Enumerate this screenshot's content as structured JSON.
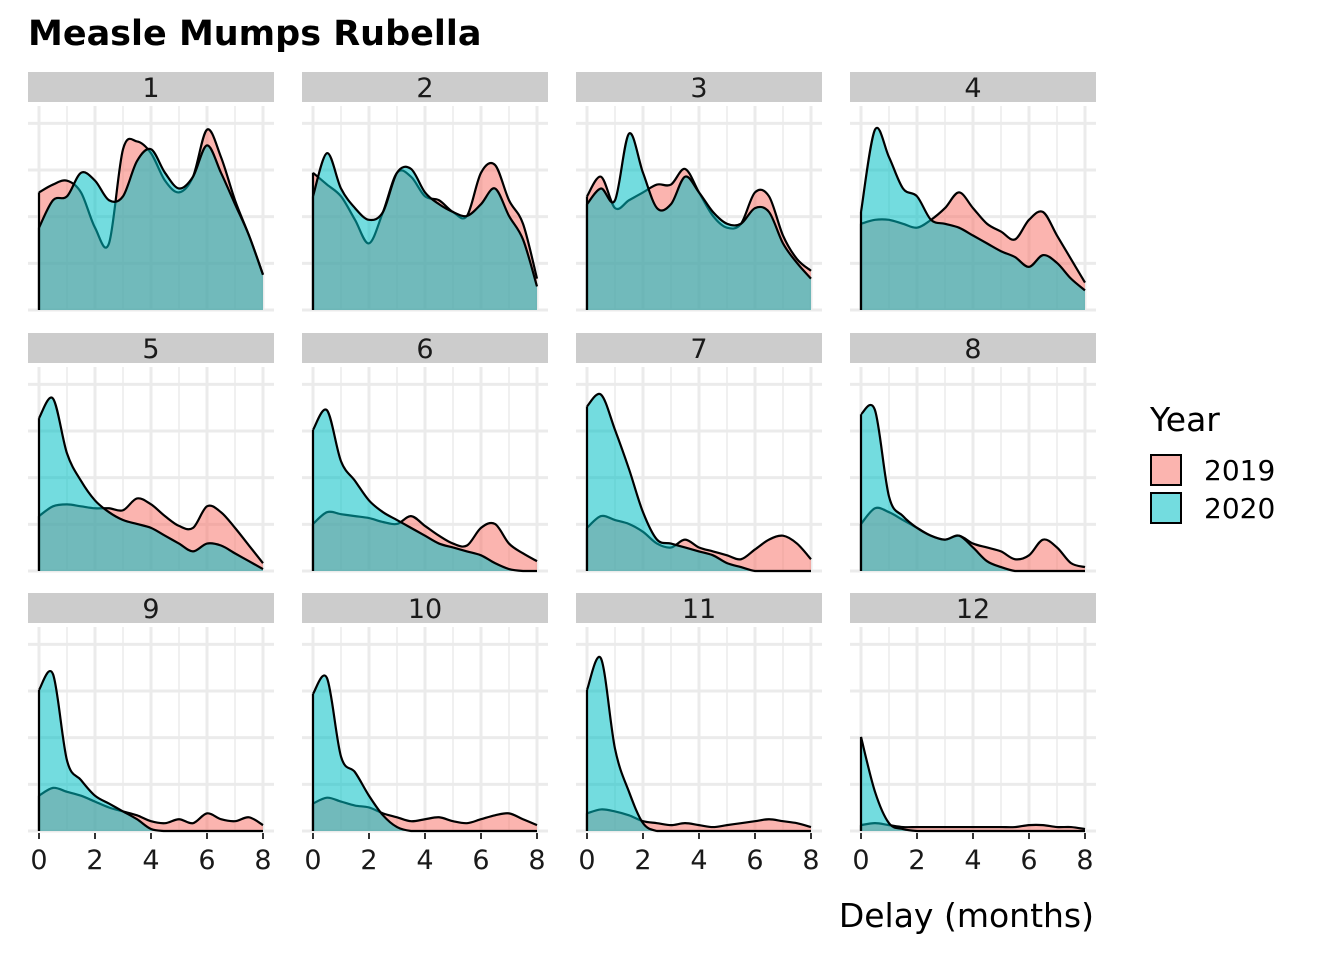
{
  "chart_data": {
    "type": "area",
    "title": "Measle Mumps Rubella",
    "xlabel": "Delay (months)",
    "ylabel": "",
    "xlim": [
      0,
      8
    ],
    "x_ticks": [
      0,
      2,
      4,
      6,
      8
    ],
    "grid": true,
    "legend": {
      "title": "Year",
      "placement": "right"
    },
    "series": [
      {
        "name": "2019",
        "color": "#F8766D"
      },
      {
        "name": "2020",
        "color": "#00BFC4"
      }
    ],
    "x": [
      0,
      0.5,
      1,
      1.5,
      2,
      2.5,
      3,
      3.5,
      4,
      4.5,
      5,
      5.5,
      6,
      6.5,
      7,
      7.5,
      8
    ],
    "panels": [
      {
        "label": "1",
        "y2019": [
          0.6,
          0.64,
          0.66,
          0.6,
          0.42,
          0.34,
          0.82,
          0.86,
          0.8,
          0.66,
          0.6,
          0.68,
          0.92,
          0.78,
          0.56,
          0.38,
          0.18
        ],
        "y2020": [
          0.42,
          0.56,
          0.58,
          0.7,
          0.66,
          0.56,
          0.58,
          0.76,
          0.82,
          0.7,
          0.62,
          0.68,
          0.84,
          0.7,
          0.54,
          0.38,
          0.18
        ]
      },
      {
        "label": "2",
        "y2019": [
          0.7,
          0.64,
          0.58,
          0.46,
          0.34,
          0.5,
          0.7,
          0.68,
          0.58,
          0.56,
          0.5,
          0.48,
          0.7,
          0.74,
          0.56,
          0.44,
          0.16
        ]
      },
      {
        "label": "3",
        "y2019": [
          0.58,
          0.68,
          0.52,
          0.56,
          0.6,
          0.64,
          0.64,
          0.72,
          0.6,
          0.48,
          0.42,
          0.44,
          0.6,
          0.58,
          0.38,
          0.26,
          0.2
        ]
      },
      {
        "label": "4",
        "y2019": [
          0.44,
          0.46,
          0.46,
          0.44,
          0.42,
          0.46,
          0.52,
          0.6,
          0.52,
          0.44,
          0.4,
          0.36,
          0.46,
          0.5,
          0.38,
          0.26,
          0.14
        ]
      },
      {
        "label": "5",
        "y2019": [
          0.28,
          0.33,
          0.34,
          0.33,
          0.32,
          0.32,
          0.31,
          0.37,
          0.34,
          0.28,
          0.23,
          0.22,
          0.33,
          0.3,
          0.22,
          0.13,
          0.04
        ]
      },
      {
        "label": "6",
        "y2019": [
          0.24,
          0.3,
          0.29,
          0.28,
          0.27,
          0.25,
          0.24,
          0.28,
          0.23,
          0.18,
          0.14,
          0.13,
          0.22,
          0.24,
          0.14,
          0.09,
          0.05
        ]
      },
      {
        "label": "7",
        "y2019": [
          0.22,
          0.28,
          0.26,
          0.24,
          0.2,
          0.14,
          0.12,
          0.16,
          0.12,
          0.1,
          0.08,
          0.06,
          0.11,
          0.16,
          0.18,
          0.14,
          0.06
        ]
      },
      {
        "label": "8",
        "y2019": [
          0.24,
          0.32,
          0.3,
          0.26,
          0.22,
          0.18,
          0.16,
          0.18,
          0.14,
          0.12,
          0.1,
          0.06,
          0.08,
          0.16,
          0.12,
          0.04,
          0.02
        ]
      },
      {
        "label": "9",
        "y2019": [
          0.18,
          0.22,
          0.2,
          0.18,
          0.15,
          0.12,
          0.1,
          0.08,
          0.05,
          0.04,
          0.06,
          0.04,
          0.09,
          0.06,
          0.05,
          0.07,
          0.03
        ]
      },
      {
        "label": "10",
        "y2019": [
          0.14,
          0.17,
          0.15,
          0.13,
          0.12,
          0.09,
          0.07,
          0.05,
          0.06,
          0.07,
          0.05,
          0.04,
          0.06,
          0.08,
          0.09,
          0.06,
          0.03
        ]
      },
      {
        "label": "11",
        "y2019": [
          0.09,
          0.11,
          0.1,
          0.08,
          0.05,
          0.04,
          0.03,
          0.04,
          0.03,
          0.02,
          0.03,
          0.04,
          0.05,
          0.06,
          0.05,
          0.04,
          0.02
        ]
      },
      {
        "label": "12",
        "y2019": [
          0.03,
          0.04,
          0.03,
          0.02,
          0.02,
          0.02,
          0.02,
          0.02,
          0.02,
          0.02,
          0.02,
          0.02,
          0.03,
          0.03,
          0.02,
          0.02,
          0.01
        ]
      }
    ],
    "panels_2020": {
      "2": [
        0.58,
        0.8,
        0.62,
        0.52,
        0.46,
        0.5,
        0.7,
        0.72,
        0.6,
        0.54,
        0.5,
        0.48,
        0.54,
        0.62,
        0.48,
        0.36,
        0.12
      ],
      "3": [
        0.54,
        0.62,
        0.56,
        0.9,
        0.7,
        0.52,
        0.54,
        0.68,
        0.6,
        0.5,
        0.44,
        0.44,
        0.52,
        0.5,
        0.34,
        0.24,
        0.16
      ],
      "4": [
        0.5,
        0.92,
        0.78,
        0.62,
        0.58,
        0.46,
        0.44,
        0.42,
        0.38,
        0.34,
        0.3,
        0.27,
        0.22,
        0.28,
        0.24,
        0.16,
        0.1
      ],
      "5": [
        0.78,
        0.88,
        0.6,
        0.46,
        0.36,
        0.3,
        0.26,
        0.24,
        0.22,
        0.18,
        0.14,
        0.1,
        0.14,
        0.13,
        0.09,
        0.05,
        0.01
      ],
      "6": [
        0.72,
        0.82,
        0.56,
        0.46,
        0.36,
        0.3,
        0.26,
        0.22,
        0.18,
        0.14,
        0.12,
        0.1,
        0.08,
        0.04,
        0.01,
        0.0,
        0.0
      ],
      "7": [
        0.84,
        0.9,
        0.72,
        0.52,
        0.3,
        0.16,
        0.14,
        0.12,
        0.1,
        0.08,
        0.04,
        0.02,
        0.0,
        0.0,
        0.0,
        0.0,
        0.0
      ],
      "8": [
        0.8,
        0.82,
        0.38,
        0.28,
        0.22,
        0.18,
        0.16,
        0.18,
        0.12,
        0.05,
        0.02,
        0.0,
        0.0,
        0.0,
        0.0,
        0.0,
        0.0
      ],
      "9": [
        0.72,
        0.8,
        0.36,
        0.26,
        0.18,
        0.14,
        0.1,
        0.06,
        0.01,
        0.0,
        0.0,
        0.0,
        0.0,
        0.0,
        0.0,
        0.0,
        0.0
      ],
      "10": [
        0.7,
        0.78,
        0.38,
        0.3,
        0.18,
        0.08,
        0.02,
        0.0,
        0.0,
        0.0,
        0.0,
        0.0,
        0.0,
        0.0,
        0.0,
        0.0,
        0.0
      ],
      "11": [
        0.72,
        0.88,
        0.42,
        0.2,
        0.04,
        0.0,
        0.0,
        0.0,
        0.0,
        0.0,
        0.0,
        0.0,
        0.0,
        0.0,
        0.0,
        0.0,
        0.0
      ],
      "12": [
        0.48,
        0.2,
        0.04,
        0.01,
        0.0,
        0.0,
        0.0,
        0.0,
        0.0,
        0.0,
        0.0,
        0.0,
        0.0,
        0.0,
        0.0,
        0.0,
        0.0
      ]
    }
  }
}
